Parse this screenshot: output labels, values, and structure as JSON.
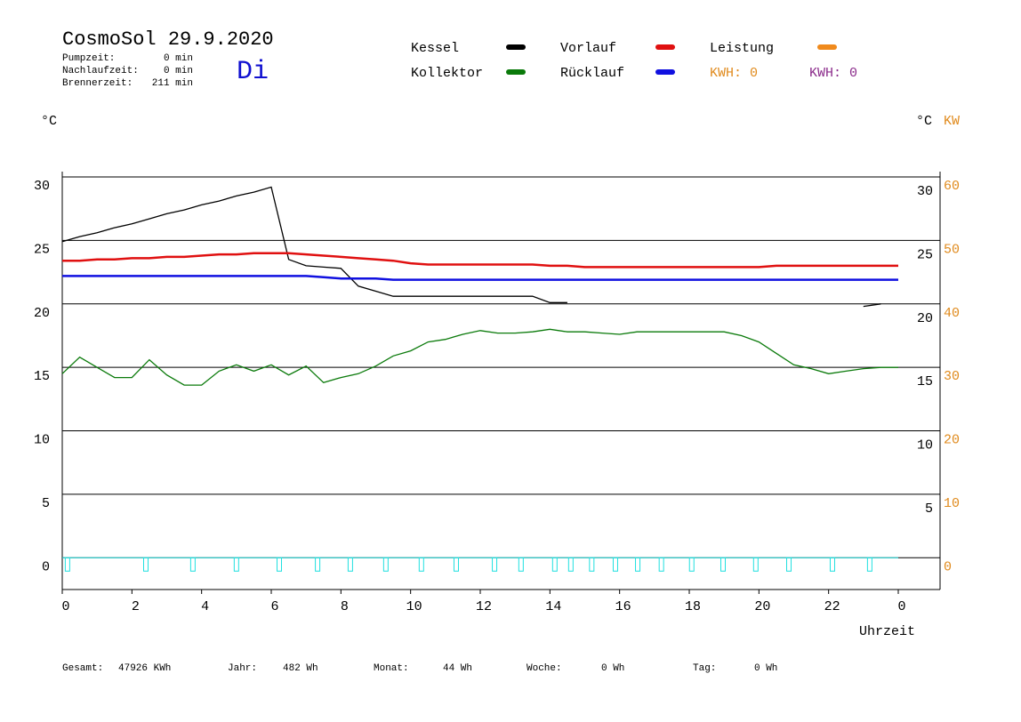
{
  "header": {
    "title": "CosmoSol 29.9.2020",
    "day": "Di",
    "stats": [
      {
        "label": "Pumpzeit:",
        "value": "0 min"
      },
      {
        "label": "Nachlaufzeit:",
        "value": "0 min"
      },
      {
        "label": "Brennerzeit:",
        "value": "211 min"
      }
    ],
    "kwh": [
      {
        "text": "KWH: 0",
        "color": "#e08a1c"
      },
      {
        "text": "KWH: 0",
        "color": "#8a2a8a"
      }
    ]
  },
  "chart_data": {
    "type": "line",
    "y_unit": "°C",
    "y2_unit_a": "°C",
    "y2_unit_b": "KW",
    "xlabel": "Uhrzeit",
    "x": [
      0,
      0.5,
      1,
      1.5,
      2,
      2.5,
      3,
      3.5,
      4,
      4.5,
      5,
      5.5,
      6,
      6.5,
      7,
      7.5,
      8,
      8.5,
      9,
      9.5,
      10,
      10.5,
      11,
      11.5,
      12,
      12.5,
      13,
      13.5,
      14,
      14.5,
      15,
      15.5,
      16,
      16.5,
      17,
      17.5,
      18,
      18.5,
      19,
      19.5,
      20,
      20.5,
      21,
      21.5,
      22,
      22.5,
      23,
      23.5,
      24
    ],
    "series": [
      {
        "name": "Kessel",
        "color": "#000000",
        "values": [
          24.9,
          25.3,
          25.6,
          26.0,
          26.3,
          26.7,
          27.1,
          27.4,
          27.8,
          28.1,
          28.5,
          28.8,
          29.2,
          23.5,
          23.0,
          22.9,
          22.8,
          21.4,
          21.0,
          20.6,
          20.6,
          20.6,
          20.6,
          20.6,
          20.6,
          20.6,
          20.6,
          20.6,
          20.1,
          20.1,
          null,
          null,
          null,
          null,
          null,
          null,
          null,
          null,
          null,
          null,
          null,
          null,
          null,
          null,
          null,
          null,
          19.8,
          20.0,
          null
        ]
      },
      {
        "name": "Kollektor",
        "color": "#0a7a0a",
        "values": [
          14.5,
          15.8,
          15.0,
          14.2,
          14.2,
          15.6,
          14.4,
          13.6,
          13.6,
          14.7,
          15.2,
          14.7,
          15.2,
          14.4,
          15.1,
          13.8,
          14.2,
          14.5,
          15.1,
          15.9,
          16.3,
          17.0,
          17.2,
          17.6,
          17.9,
          17.7,
          17.7,
          17.8,
          18.0,
          17.8,
          17.8,
          17.7,
          17.6,
          17.8,
          17.8,
          17.8,
          17.8,
          17.8,
          17.8,
          17.5,
          17.0,
          16.1,
          15.2,
          14.9,
          14.5,
          14.7,
          14.9,
          15.0,
          15.0
        ]
      },
      {
        "name": "Vorlauf",
        "color": "#e01010",
        "values": [
          23.4,
          23.4,
          23.5,
          23.5,
          23.6,
          23.6,
          23.7,
          23.7,
          23.8,
          23.9,
          23.9,
          24.0,
          24.0,
          24.0,
          23.9,
          23.8,
          23.7,
          23.6,
          23.5,
          23.4,
          23.2,
          23.1,
          23.1,
          23.1,
          23.1,
          23.1,
          23.1,
          23.1,
          23.0,
          23.0,
          22.9,
          22.9,
          22.9,
          22.9,
          22.9,
          22.9,
          22.9,
          22.9,
          22.9,
          22.9,
          22.9,
          23.0,
          23.0,
          23.0,
          23.0,
          23.0,
          23.0,
          23.0,
          23.0
        ]
      },
      {
        "name": "Rücklauf",
        "color": "#1010e0",
        "values": [
          22.2,
          22.2,
          22.2,
          22.2,
          22.2,
          22.2,
          22.2,
          22.2,
          22.2,
          22.2,
          22.2,
          22.2,
          22.2,
          22.2,
          22.2,
          22.1,
          22.0,
          22.0,
          22.0,
          21.9,
          21.9,
          21.9,
          21.9,
          21.9,
          21.9,
          21.9,
          21.9,
          21.9,
          21.9,
          21.9,
          21.9,
          21.9,
          21.9,
          21.9,
          21.9,
          21.9,
          21.9,
          21.9,
          21.9,
          21.9,
          21.9,
          21.9,
          21.9,
          21.9,
          21.9,
          21.9,
          21.9,
          21.9,
          21.9
        ]
      },
      {
        "name": "Leistung",
        "color": "#f08a1c",
        "axis": "y2",
        "values": [
          null,
          null,
          null,
          null,
          null,
          null,
          null,
          null,
          null,
          null,
          null,
          null,
          null,
          null,
          null,
          null,
          null,
          null,
          null,
          null,
          null,
          null,
          null,
          null,
          null,
          null,
          null,
          null,
          null,
          null,
          null,
          null,
          null,
          null,
          null,
          null,
          null,
          null,
          null,
          null,
          null,
          null,
          null,
          null,
          null,
          null,
          null,
          null,
          null
        ]
      }
    ],
    "pump_color": "#20e0e0",
    "pump_times": [
      0.15,
      2.4,
      3.75,
      5.0,
      6.23,
      7.33,
      8.27,
      9.29,
      10.31,
      11.31,
      12.41,
      13.17,
      14.14,
      14.6,
      15.2,
      15.88,
      16.52,
      17.2,
      18.07,
      18.97,
      19.91,
      20.86,
      22.11,
      23.18
    ],
    "xlim": [
      0,
      25.2
    ],
    "xticks": [
      0,
      2,
      4,
      6,
      8,
      10,
      12,
      14,
      16,
      18,
      20,
      22,
      {
        "value": 24,
        "label": "0"
      }
    ],
    "ylim": [
      -2.5,
      30
    ],
    "yticks": [
      0,
      5,
      10,
      15,
      20,
      25,
      30
    ],
    "yticks_right": [
      5,
      10,
      15,
      20,
      25,
      30
    ],
    "y2lim": [
      -5,
      60
    ],
    "y2ticks": [
      0,
      10,
      20,
      30,
      40,
      50,
      60
    ],
    "y2_color": "#e08a1c",
    "grid": true
  },
  "footer": [
    {
      "label": "Gesamt:",
      "value": "47926 KWh"
    },
    {
      "label": "Jahr:",
      "value": "482 Wh"
    },
    {
      "label": "Monat:",
      "value": "44 Wh"
    },
    {
      "label": "Woche:",
      "value": "0 Wh"
    },
    {
      "label": "Tag:",
      "value": "0 Wh"
    }
  ]
}
